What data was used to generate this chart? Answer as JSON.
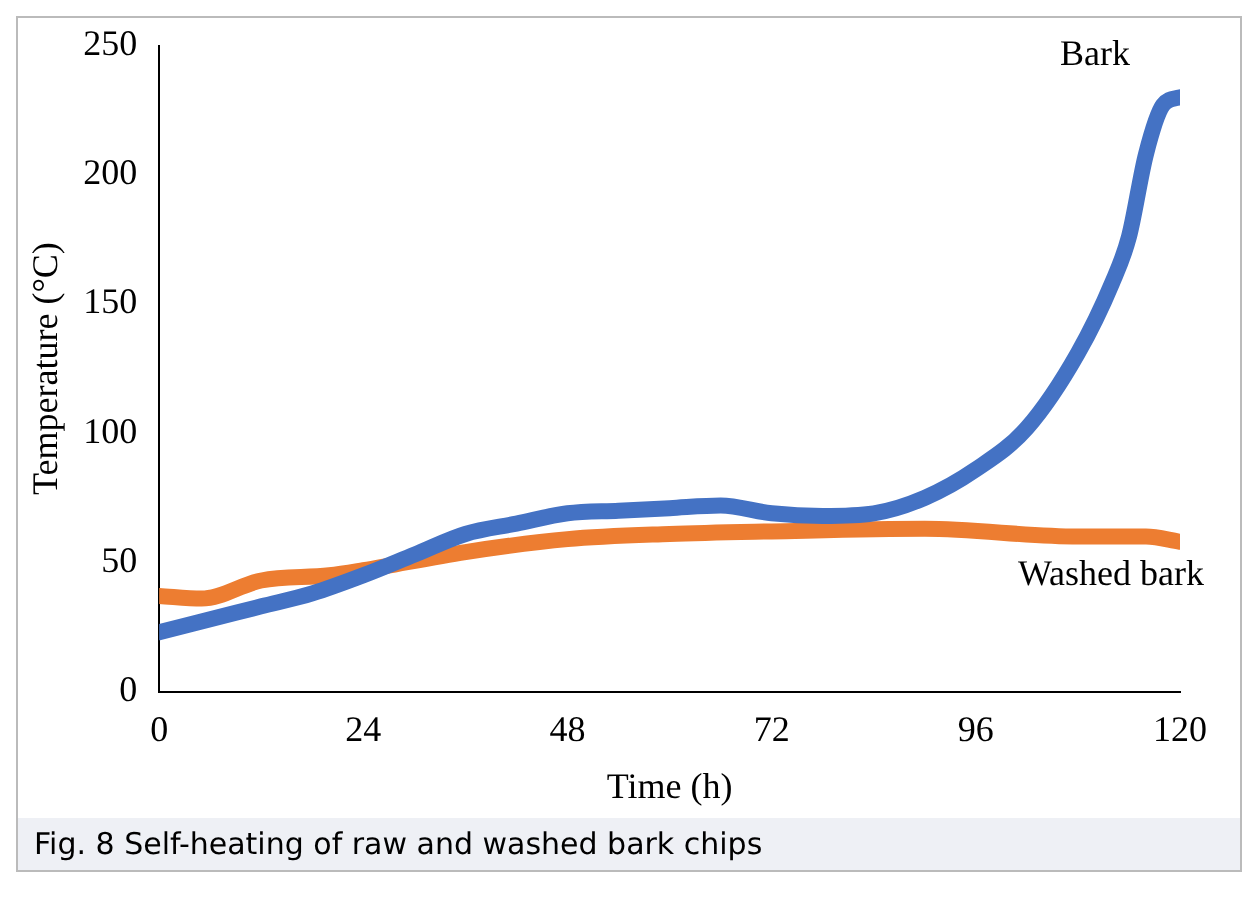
{
  "chart_data": {
    "type": "line",
    "xlabel": "Time (h)",
    "ylabel": "Temperature (°C)",
    "xlim": [
      0,
      120
    ],
    "xticks": [
      0,
      24,
      48,
      72,
      96,
      120
    ],
    "ylim": [
      0,
      250
    ],
    "yticks": [
      0,
      50,
      100,
      150,
      200,
      250
    ],
    "grid": false,
    "legend": false,
    "marker": "none",
    "line_style": "solid",
    "annotations": [
      "Fig. 8 Self-heating of raw and washed bark chips"
    ],
    "series": [
      {
        "name": "Bark",
        "color": "#4472c4",
        "x": [
          0,
          6,
          12,
          18,
          24,
          30,
          36,
          42,
          48,
          54,
          60,
          66,
          72,
          78,
          84,
          90,
          96,
          102,
          108,
          112,
          114,
          116,
          118,
          120
        ],
        "values": [
          23,
          28,
          33,
          38,
          45,
          53,
          61,
          65,
          69,
          70,
          71,
          72,
          69,
          68,
          69,
          75,
          86,
          102,
          131,
          158,
          176,
          208,
          227,
          230
        ]
      },
      {
        "name": "Washed bark",
        "color": "#ed7d31",
        "x": [
          0,
          5,
          12,
          20,
          24,
          36,
          48,
          60,
          72,
          90,
          108,
          116,
          120
        ],
        "values": [
          37,
          36,
          43,
          45,
          47,
          54,
          59,
          61,
          62,
          63,
          60,
          60,
          58
        ]
      }
    ]
  }
}
